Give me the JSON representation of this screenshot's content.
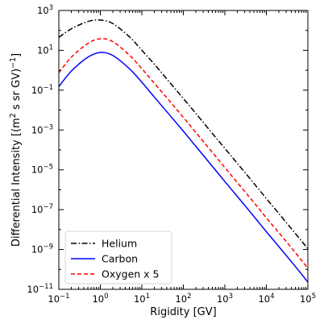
{
  "chart_data": {
    "type": "line",
    "xscale": "log",
    "yscale": "log",
    "xlim": [
      0.1,
      100000
    ],
    "ylim": [
      1e-11,
      1000
    ],
    "xlabel": "Rigidity [GV]",
    "ylabel": {
      "prefix": "Differential Intensity [(m",
      "sup1": "2",
      "middle": " s sr GV)",
      "sup2": "−1",
      "suffix": "]"
    },
    "x_ticks": [
      {
        "base": "10",
        "exp": "−1",
        "value": 0.1
      },
      {
        "base": "10",
        "exp": "0",
        "value": 1
      },
      {
        "base": "10",
        "exp": "1",
        "value": 10
      },
      {
        "base": "10",
        "exp": "2",
        "value": 100
      },
      {
        "base": "10",
        "exp": "3",
        "value": 1000
      },
      {
        "base": "10",
        "exp": "4",
        "value": 10000
      },
      {
        "base": "10",
        "exp": "5",
        "value": 100000
      }
    ],
    "y_ticks": [
      {
        "base": "10",
        "exp": "3",
        "value": 1000
      },
      {
        "base": "10",
        "exp": "1",
        "value": 10
      },
      {
        "base": "10",
        "exp": "−1",
        "value": 0.1
      },
      {
        "base": "10",
        "exp": "−3",
        "value": 0.001
      },
      {
        "base": "10",
        "exp": "−5",
        "value": 1e-05
      },
      {
        "base": "10",
        "exp": "−7",
        "value": 1e-07
      },
      {
        "base": "10",
        "exp": "−9",
        "value": 1e-09
      },
      {
        "base": "10",
        "exp": "−11",
        "value": 1e-11
      }
    ],
    "x": [
      0.1,
      0.2,
      0.5,
      1,
      2,
      5,
      10,
      20,
      50,
      100,
      200,
      500,
      1000,
      2000,
      5000,
      10000,
      20000,
      50000,
      100000
    ],
    "series": [
      {
        "name": "Helium",
        "color": "#000000",
        "dash": "dashdot",
        "values": [
          45,
          120,
          280,
          330,
          220,
          48,
          10,
          2.0,
          0.21,
          0.038,
          0.0068,
          0.00067,
          0.00012,
          2.1e-05,
          2.1e-06,
          3.6e-07,
          6.4e-08,
          6.3e-09,
          1.1e-09
        ]
      },
      {
        "name": "Carbon",
        "color": "#0000ff",
        "dash": "solid",
        "values": [
          0.15,
          0.9,
          4.5,
          7.8,
          5.5,
          1.2,
          0.25,
          0.045,
          0.0048,
          0.00087,
          0.00015,
          1.5e-05,
          2.6e-06,
          4.6e-07,
          4.6e-08,
          7.8e-09,
          1.4e-09,
          1.4e-10,
          2.3e-11
        ]
      },
      {
        "name": "Oxygen x 5",
        "color": "#ff0000",
        "dash": "dashed",
        "values": [
          0.75,
          4.5,
          22,
          38,
          27,
          5.8,
          1.2,
          0.22,
          0.024,
          0.0043,
          0.00075,
          7.5e-05,
          1.3e-05,
          2.3e-06,
          2.3e-07,
          3.9e-08,
          7e-09,
          6.9e-10,
          1.15e-10
        ]
      }
    ],
    "legend": {
      "placement": "lower-left",
      "entries": [
        "Helium",
        "Carbon",
        "Oxygen x 5"
      ]
    },
    "grid": false
  }
}
